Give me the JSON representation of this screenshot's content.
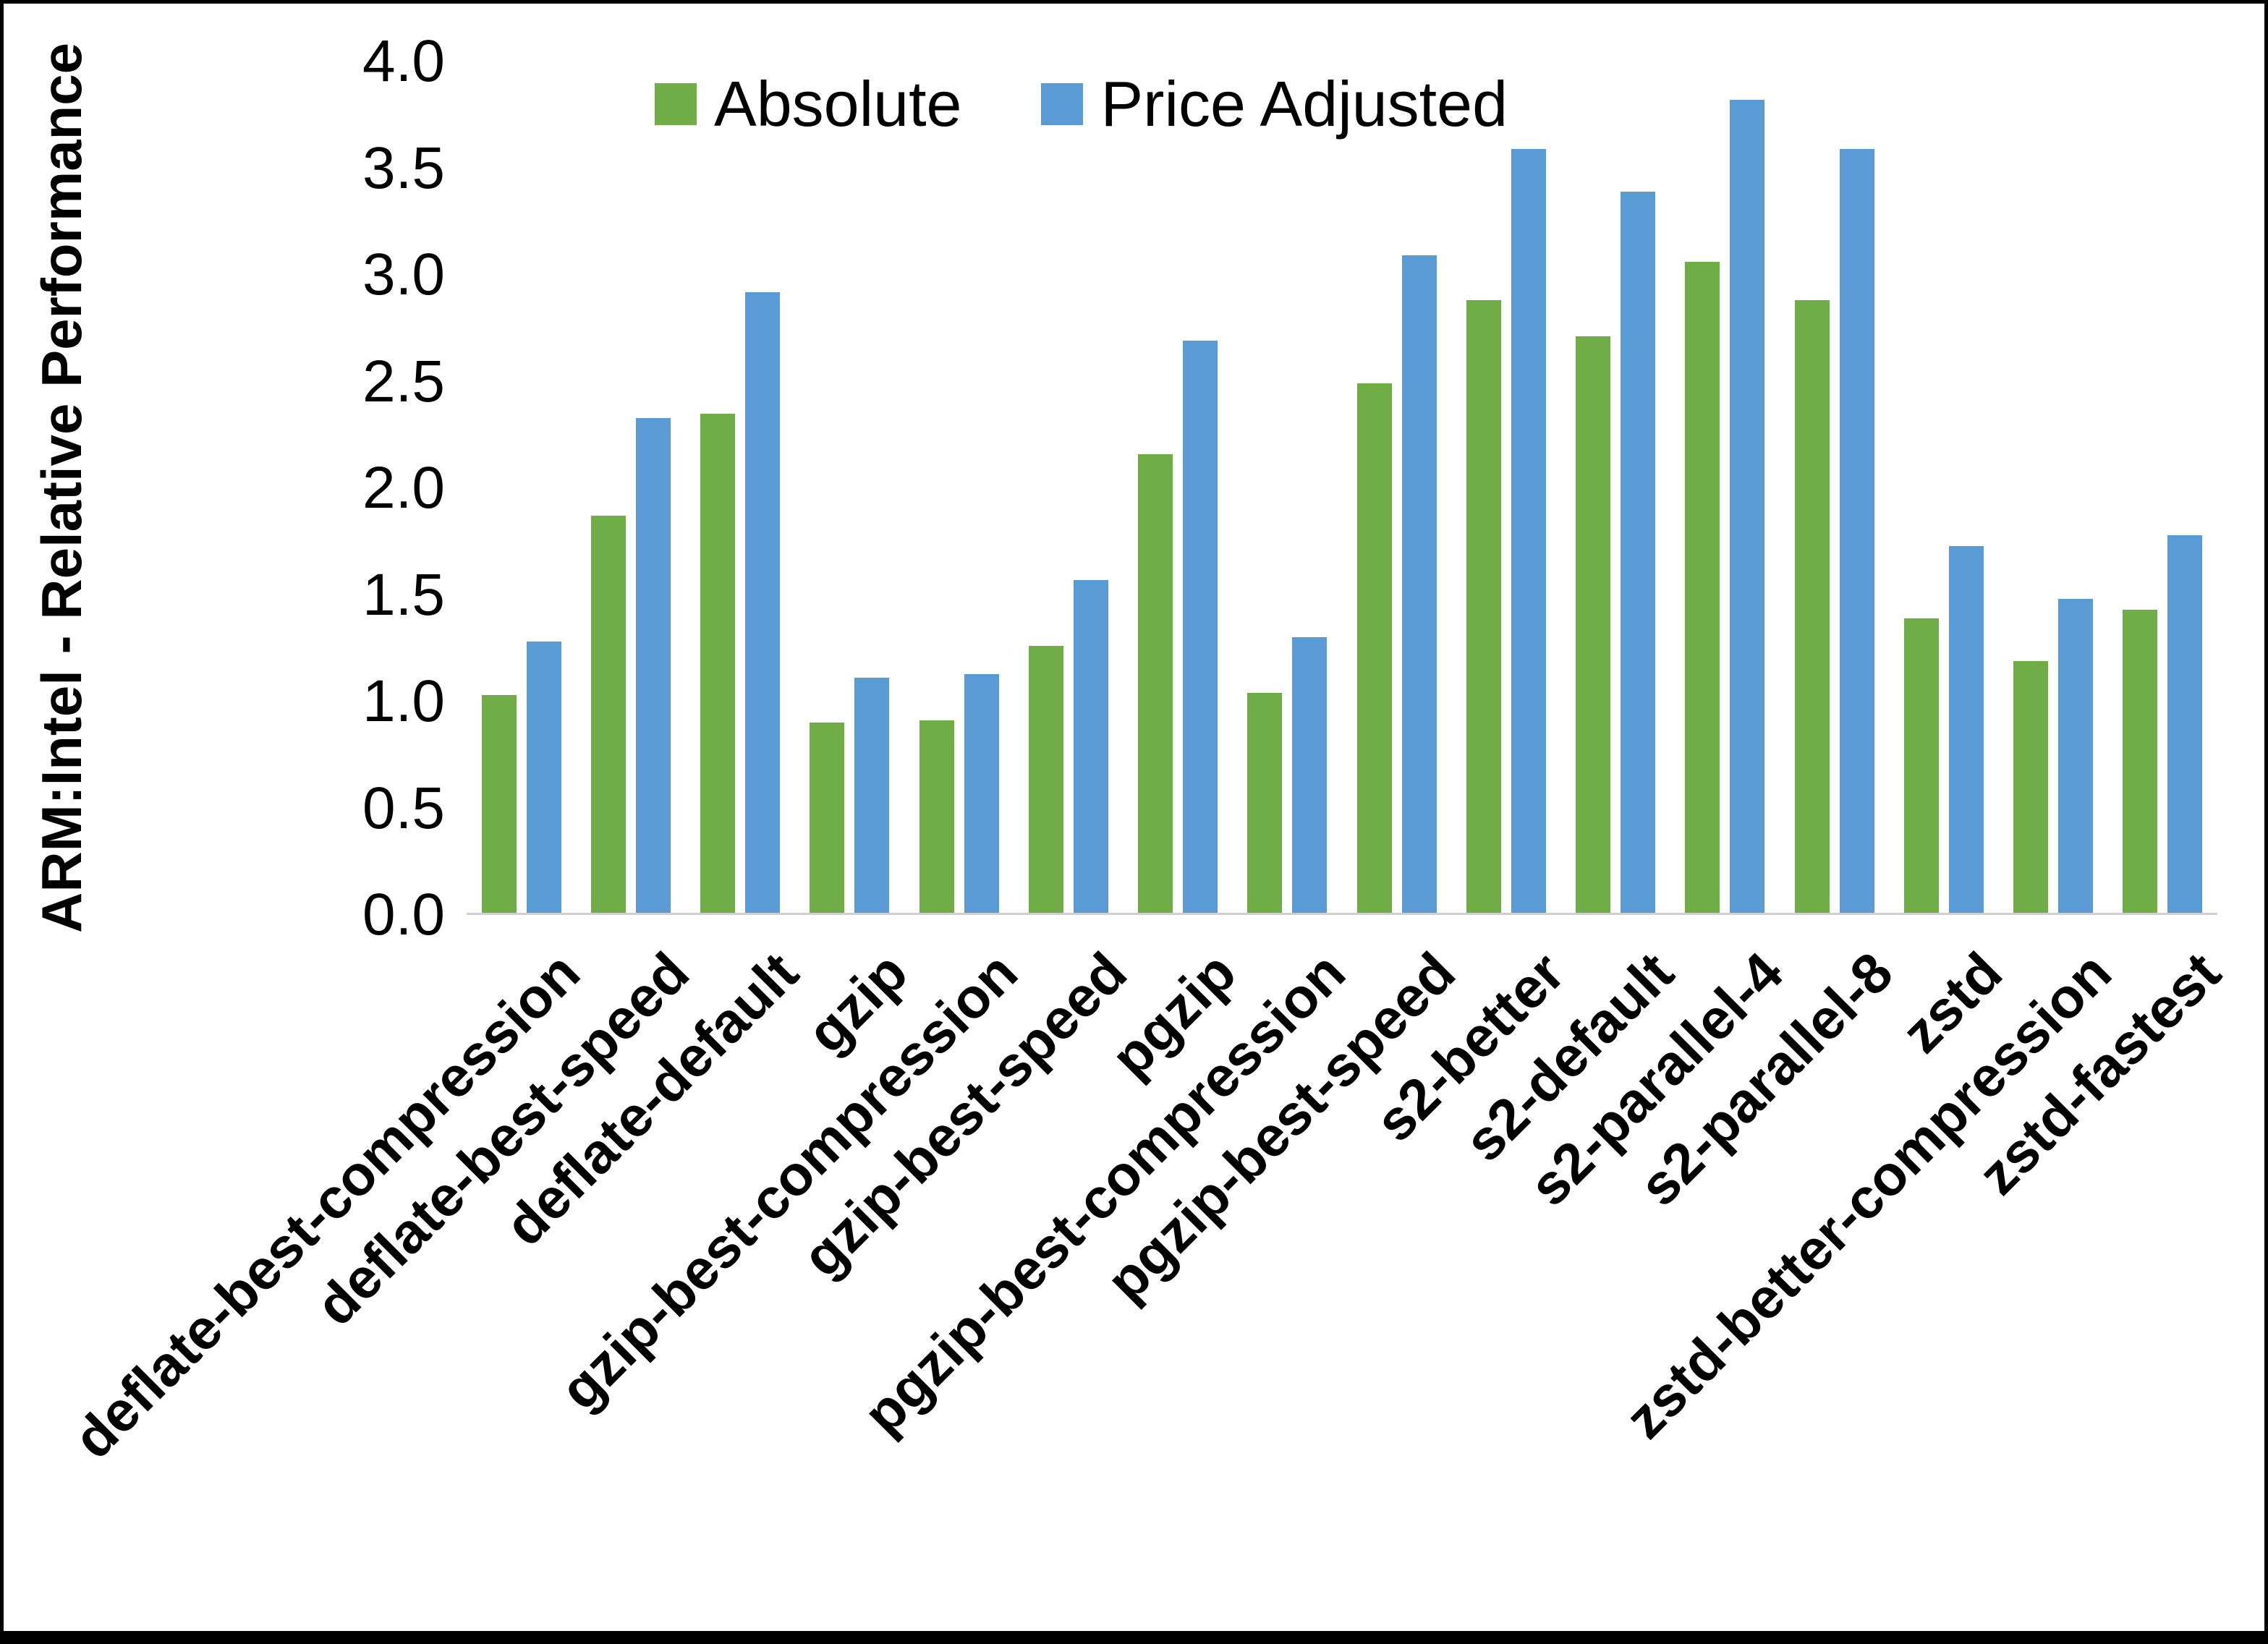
{
  "chart_data": {
    "type": "bar",
    "title": "",
    "xlabel": "",
    "ylabel": "ARM:Intel - Relative Performance",
    "ylim": [
      0.0,
      4.0
    ],
    "ytick_step": 0.5,
    "ytick_decimals": 1,
    "grid": false,
    "legend_position": "top",
    "categories": [
      "deflate-best-compression",
      "deflate-best-speed",
      "deflate-default",
      "gzip",
      "gzip-best-compression",
      "gzip-best-speed",
      "pgzip",
      "pgzip-best-compression",
      "pgzip-best-speed",
      "s2-better",
      "s2-default",
      "s2-parallel-4",
      "s2-parallel-8",
      "zstd",
      "zstd-better-compression",
      "zstd-fastest"
    ],
    "series": [
      {
        "name": "Absolute",
        "color": "#70AD47",
        "values": [
          1.02,
          1.86,
          2.34,
          0.89,
          0.9,
          1.25,
          2.15,
          1.03,
          2.48,
          2.87,
          2.7,
          3.05,
          2.87,
          1.38,
          1.18,
          1.42
        ]
      },
      {
        "name": "Price Adjusted",
        "color": "#5B9BD5",
        "values": [
          1.27,
          2.32,
          2.91,
          1.1,
          1.12,
          1.56,
          2.68,
          1.29,
          3.08,
          3.58,
          3.38,
          3.81,
          3.58,
          1.72,
          1.47,
          1.77
        ]
      }
    ]
  }
}
